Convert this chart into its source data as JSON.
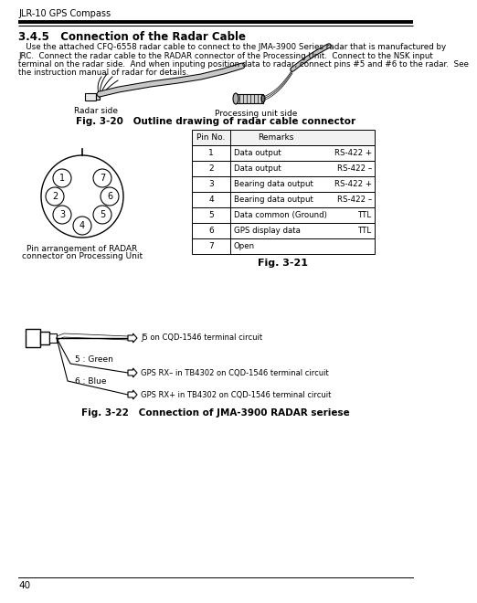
{
  "bg_color": "#ffffff",
  "page_number": "40",
  "header_text": "JLR-10 GPS Compass",
  "section_title": "3.4.5   Connection of the Radar Cable",
  "body_text_lines": [
    "   Use the attached CFQ-6558 radar cable to connect to the JMA-3900 Series radar that is manufactured by",
    "JRC.  Connect the radar cable to the RADAR connector of the Processing Unit.  Connect to the NSK input",
    "terminal on the radar side.  And when inputing position data to radar, connect pins #5 and #6 to the radar.  See",
    "the instruction manual of radar for details."
  ],
  "fig20_caption": "Fig. 3-20   Outline drawing of radar cable connector",
  "fig21_caption": "Fig. 3-21",
  "fig22_caption": "Fig. 3-22   Connection of JMA-3900 RADAR seriese",
  "radar_label": "Radar side",
  "processing_label": "Processing unit side",
  "pin_label_lines": [
    "Pin arrangement of RADAR",
    "connector on Processing Unit"
  ],
  "table_headers": [
    "Pin No.",
    "Remarks"
  ],
  "table_rows": [
    [
      "1",
      "Data output",
      "RS-422 +"
    ],
    [
      "2",
      "Data output",
      "RS-422 –"
    ],
    [
      "3",
      "Bearing data output",
      "RS-422 +"
    ],
    [
      "4",
      "Bearing data output",
      "RS-422 –"
    ],
    [
      "5",
      "Data common (Ground)",
      "TTL"
    ],
    [
      "6",
      "GPS display data",
      "TTL"
    ],
    [
      "7",
      "Open",
      ""
    ]
  ],
  "wiring_labels": [
    "J5 on CQD-1546 terminal circuit",
    "GPS RX– in TB4302 on CQD-1546 terminal circuit",
    "GPS RX+ in TB4302 on CQD-1546 terminal circuit"
  ],
  "wire_color_labels": [
    "5 : Green",
    "6 : Blue"
  ]
}
